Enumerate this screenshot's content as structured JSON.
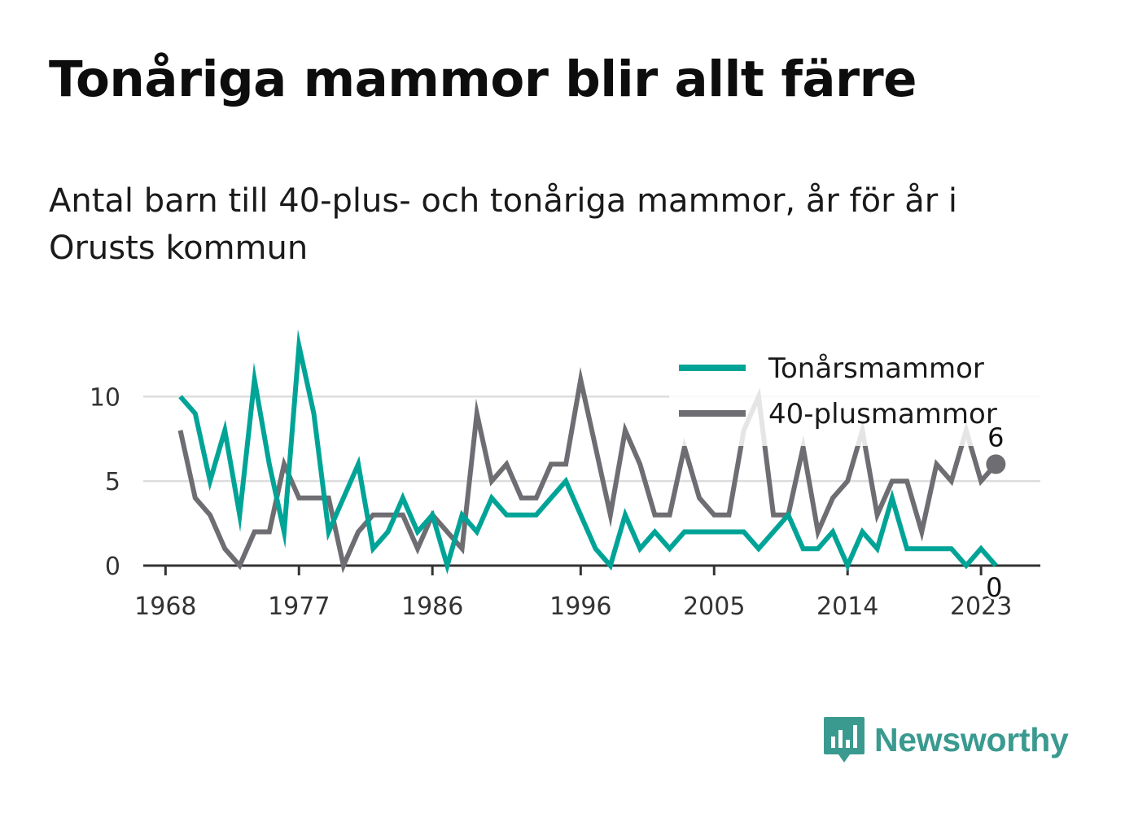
{
  "header": {
    "title": "Tonåriga mammor blir allt färre",
    "subtitle": "Antal barn till 40-plus- och tonåriga mammor, år för år i Orusts kommun"
  },
  "brand": {
    "name": "Newsworthy",
    "color": "#3a9a8f",
    "icon": "bar-chart-speech-bubble-icon"
  },
  "chart_data": {
    "type": "line",
    "x": [
      1969,
      1970,
      1971,
      1972,
      1973,
      1974,
      1975,
      1976,
      1977,
      1978,
      1979,
      1980,
      1981,
      1982,
      1983,
      1984,
      1985,
      1986,
      1987,
      1988,
      1989,
      1990,
      1991,
      1992,
      1993,
      1994,
      1995,
      1996,
      1997,
      1998,
      1999,
      2000,
      2001,
      2002,
      2003,
      2004,
      2005,
      2006,
      2007,
      2008,
      2009,
      2010,
      2011,
      2012,
      2013,
      2014,
      2015,
      2016,
      2017,
      2018,
      2019,
      2020,
      2021,
      2022,
      2023,
      2024
    ],
    "series": [
      {
        "name": "Tonårsmammor",
        "color": "#00a497",
        "values": [
          10,
          9,
          5,
          8,
          3,
          11,
          6,
          2,
          13,
          9,
          2,
          4,
          6,
          1,
          2,
          4,
          2,
          3,
          0,
          3,
          2,
          4,
          3,
          3,
          3,
          4,
          5,
          3,
          1,
          0,
          3,
          1,
          2,
          1,
          2,
          2,
          2,
          2,
          2,
          1,
          2,
          3,
          1,
          1,
          2,
          0,
          2,
          1,
          4,
          1,
          1,
          1,
          1,
          0,
          1,
          0
        ],
        "end_label": "0"
      },
      {
        "name": "40-plusmammor",
        "color": "#6e6d72",
        "values": [
          8,
          4,
          3,
          1,
          0,
          2,
          2,
          6,
          4,
          4,
          4,
          0,
          2,
          3,
          3,
          3,
          1,
          3,
          2,
          1,
          9,
          5,
          6,
          4,
          4,
          6,
          6,
          11,
          7,
          3,
          8,
          6,
          3,
          3,
          7,
          4,
          3,
          3,
          8,
          10,
          3,
          3,
          7,
          2,
          4,
          5,
          8,
          3,
          5,
          5,
          2,
          6,
          5,
          8,
          5,
          6
        ],
        "end_label": "6"
      }
    ],
    "x_ticks": [
      "1968",
      "1977",
      "1986",
      "1996",
      "2005",
      "2014",
      "2023"
    ],
    "x_tick_values": [
      1968,
      1977,
      1986,
      1996,
      2005,
      2014,
      2023
    ],
    "y_ticks": [
      "0",
      "5",
      "10"
    ],
    "y_tick_values": [
      0,
      5,
      10
    ],
    "xlim": [
      1966.5,
      2027
    ],
    "ylim": [
      0,
      13
    ],
    "grid": true,
    "legend_position": "top-right"
  }
}
